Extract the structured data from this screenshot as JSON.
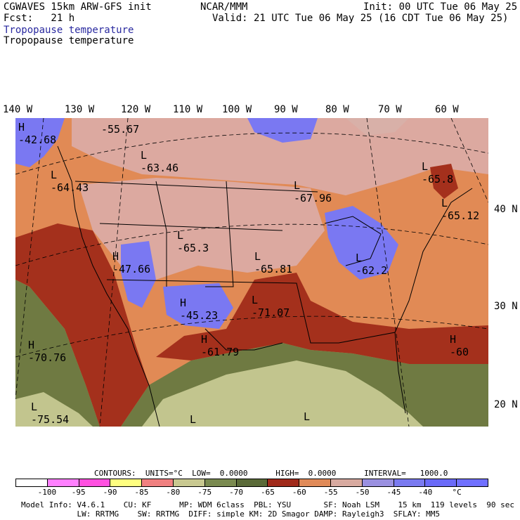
{
  "header": {
    "model": "CGWAVES 15km ARW-GFS init",
    "source": "NCAR/MMM",
    "init": "Init: 00 UTC Tue 06 May 25",
    "fcst": "Fcst:   21 h",
    "valid": "Valid: 21 UTC Tue 06 May 25 (16 CDT Tue 06 May 25)",
    "field_colored": "Tropopause temperature",
    "field_black": "Tropopause temperature"
  },
  "axes": {
    "lon_labels": [
      "140 W",
      "130 W",
      "120 W",
      "110 W",
      "100 W",
      "90 W",
      "80 W",
      "70 W",
      "60 W"
    ],
    "lat_labels": [
      "40 N",
      "30 N",
      "20 N"
    ]
  },
  "map_labels": [
    {
      "kind": "H",
      "value": "-42.68"
    },
    {
      "kind": "",
      "value": "-55.67"
    },
    {
      "kind": "L",
      "value": "-63.46"
    },
    {
      "kind": "L",
      "value": "-64.43"
    },
    {
      "kind": "L",
      "value": "-67.96"
    },
    {
      "kind": "L",
      "value": "-65.8"
    },
    {
      "kind": "L",
      "value": "-65.12"
    },
    {
      "kind": "L",
      "value": "-65.3"
    },
    {
      "kind": "H",
      "value": "-47.66"
    },
    {
      "kind": "L",
      "value": "-65.81"
    },
    {
      "kind": "H",
      "value": "-45.23"
    },
    {
      "kind": "L",
      "value": "-71.07"
    },
    {
      "kind": "L",
      "value": "-62.2"
    },
    {
      "kind": "H",
      "value": "-61.79"
    },
    {
      "kind": "H",
      "value": "-70.76"
    },
    {
      "kind": "L",
      "value": "-75.54"
    },
    {
      "kind": "H",
      "value": "-60"
    },
    {
      "kind": "L",
      "value": ""
    },
    {
      "kind": "L",
      "value": ""
    }
  ],
  "contours_line": "CONTOURS:  UNITS=°C  LOW=  0.0000      HIGH=  0.0000      INTERVAL=   1000.0",
  "colorbar": {
    "colors": [
      "#ffffff",
      "#ff80ff",
      "#ff50e0",
      "#ffff80",
      "#f08080",
      "#c8c890",
      "#7a8a50",
      "#5a6a38",
      "#a02a1a",
      "#e08a58",
      "#d8aaa0",
      "#9a90e0",
      "#7a7af0",
      "#6a6af8",
      "#7070ff"
    ],
    "ticks": [
      "-100",
      "-95",
      "-90",
      "-85",
      "-80",
      "-75",
      "-70",
      "-65",
      "-60",
      "-55",
      "-50",
      "-45",
      "-40",
      "°C"
    ]
  },
  "footer": {
    "line1": "Model Info: V4.6.1    CU: KF      MP: WDM 6class  PBL: YSU       SF: Noah LSM    15 km  119 levels  90 sec",
    "line2": "            LW: RRTMG    SW: RRTMG  DIFF: simple KM: 2D Smagor DAMP: Rayleigh3  SFLAY: MM5"
  },
  "colors": {
    "purple_warm": "#7a78f2",
    "pink": "#dca9a0",
    "orange": "#e18a55",
    "dark_red": "#a4301c",
    "olive": "#6f7a42",
    "khaki": "#c2c58e"
  }
}
